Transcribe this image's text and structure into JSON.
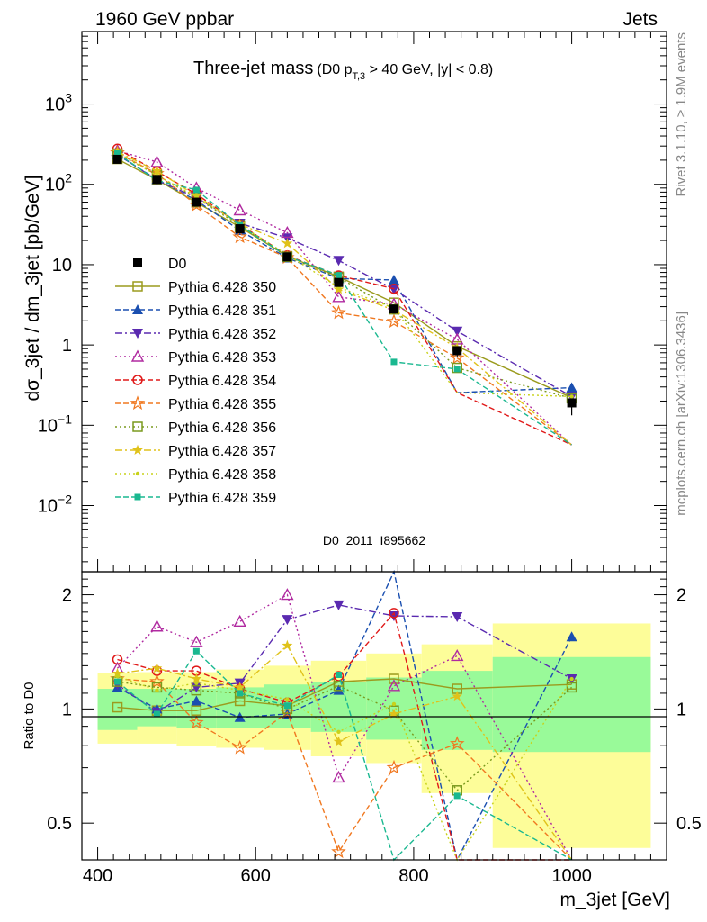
{
  "header": {
    "left": "1960 GeV ppbar",
    "right": "Jets",
    "side_top": "Rivet 3.1.10, ≥ 1.9M events",
    "side_bottom": "mcplots.cern.ch [arXiv:1306.3436]",
    "watermark": "D0_2011_I895662"
  },
  "chart_data": {
    "type": "line",
    "title_main": "Three-jet mass",
    "title_cut": "(D0 p",
    "title_sub": "T,3",
    "title_rest": " > 40 GeV, |y| < 0.8)",
    "xlabel": "m_3jet [GeV]",
    "ylabel": "dσ_3jet / dm_3jet [pb/GeV]",
    "ratio_ylabel": "Ratio to D0",
    "xlim": [
      380,
      1120
    ],
    "ylim": [
      0.0015,
      8000
    ],
    "yscale": "log",
    "ratio_ylim": [
      0.4,
      2.3
    ],
    "ratio_yscale": "log",
    "x_ticks": [
      "400",
      "600",
      "800",
      "1000"
    ],
    "y_ticks": [
      {
        "base": "10",
        "exp": "3"
      },
      {
        "base": "10",
        "exp": "2"
      },
      {
        "base": "10",
        "exp": ""
      },
      {
        "base": "1",
        "exp": ""
      },
      {
        "base": "10",
        "exp": "−1"
      },
      {
        "base": "10",
        "exp": "−2"
      }
    ],
    "ratio_ticks": [
      "2",
      "1",
      "0.5"
    ],
    "bins": [
      [
        400,
        450
      ],
      [
        450,
        500
      ],
      [
        500,
        550
      ],
      [
        550,
        610
      ],
      [
        610,
        670
      ],
      [
        670,
        740
      ],
      [
        740,
        810
      ],
      [
        810,
        900
      ],
      [
        900,
        1100
      ]
    ],
    "x": [
      425,
      475,
      525,
      580,
      640,
      705,
      775,
      855,
      1000
    ],
    "data": {
      "name": "D0",
      "values": [
        205,
        115,
        60,
        28,
        12.5,
        6,
        2.8,
        0.85,
        0.19
      ],
      "err_frac": [
        0.06,
        0.06,
        0.07,
        0.08,
        0.09,
        0.1,
        0.12,
        0.18,
        0.3
      ],
      "band_inner": [
        [
          0.88,
          1.13
        ],
        [
          0.9,
          1.13
        ],
        [
          0.89,
          1.13
        ],
        [
          0.89,
          1.14
        ],
        [
          0.89,
          1.16
        ],
        [
          0.87,
          1.18
        ],
        [
          0.83,
          1.21
        ],
        [
          0.78,
          1.26
        ],
        [
          0.77,
          1.37
        ]
      ],
      "band_outer": [
        [
          0.81,
          1.24
        ],
        [
          0.81,
          1.25
        ],
        [
          0.8,
          1.25
        ],
        [
          0.79,
          1.27
        ],
        [
          0.78,
          1.3
        ],
        [
          0.75,
          1.34
        ],
        [
          0.72,
          1.4
        ],
        [
          0.6,
          1.48
        ],
        [
          0.43,
          1.68
        ]
      ]
    },
    "series": [
      {
        "name": "Pythia 6.428 350",
        "color": "#9b9b1e",
        "marker": "open-square",
        "dash": "solid",
        "ratio": [
          1.01,
          0.99,
          0.99,
          1.05,
          1.02,
          1.18,
          1.2,
          1.13,
          1.16
        ]
      },
      {
        "name": "Pythia 6.428 351",
        "color": "#1a4fb0",
        "marker": "up-triangle",
        "dash": "dash",
        "ratio": [
          1.14,
          1.0,
          1.05,
          0.95,
          0.97,
          1.12,
          2.3,
          null,
          1.55
        ]
      },
      {
        "name": "Pythia 6.428 352",
        "color": "#5a2ab0",
        "marker": "down-triangle",
        "dash": "dashdot",
        "ratio": [
          1.16,
          0.98,
          1.14,
          1.17,
          1.72,
          1.88,
          1.76,
          1.75,
          1.2
        ]
      },
      {
        "name": "Pythia 6.428 353",
        "color": "#b02aa0",
        "marker": "open-up-triangle",
        "dash": "dot",
        "ratio": [
          1.28,
          1.65,
          1.5,
          1.7,
          2.0,
          0.66,
          1.15,
          1.38,
          null
        ]
      },
      {
        "name": "Pythia 6.428 354",
        "color": "#e01818",
        "marker": "open-circle",
        "dash": "dash",
        "ratio": [
          1.35,
          1.26,
          1.26,
          1.13,
          1.04,
          1.22,
          1.79,
          null,
          null
        ]
      },
      {
        "name": "Pythia 6.428 355",
        "color": "#f07820",
        "marker": "star",
        "dash": "dash",
        "ratio": [
          1.2,
          1.18,
          0.92,
          0.79,
          0.98,
          0.42,
          0.7,
          0.81,
          null
        ]
      },
      {
        "name": "Pythia 6.428 356",
        "color": "#7a9a1e",
        "marker": "open-square",
        "dash": "dot",
        "ratio": [
          1.18,
          1.14,
          1.12,
          1.1,
          1.0,
          1.15,
          0.99,
          0.61,
          1.14
        ]
      },
      {
        "name": "Pythia 6.428 357",
        "color": "#e0c21a",
        "marker": "small-star",
        "dash": "dashdot",
        "ratio": [
          1.24,
          1.28,
          1.2,
          1.14,
          1.47,
          0.82,
          0.97,
          1.08,
          null
        ]
      },
      {
        "name": "Pythia 6.428 358",
        "color": "#c8d21a",
        "marker": "small-dot",
        "dash": "dot",
        "ratio": [
          1.22,
          1.12,
          1.17,
          1.12,
          1.06,
          0.87,
          1.03,
          null,
          1.2
        ]
      },
      {
        "name": "Pythia 6.428 359",
        "color": "#1ab890",
        "marker": "filled-square",
        "dash": "dash",
        "ratio": [
          1.18,
          0.97,
          1.42,
          1.1,
          1.02,
          1.23,
          0.22,
          0.59,
          null
        ]
      }
    ]
  }
}
